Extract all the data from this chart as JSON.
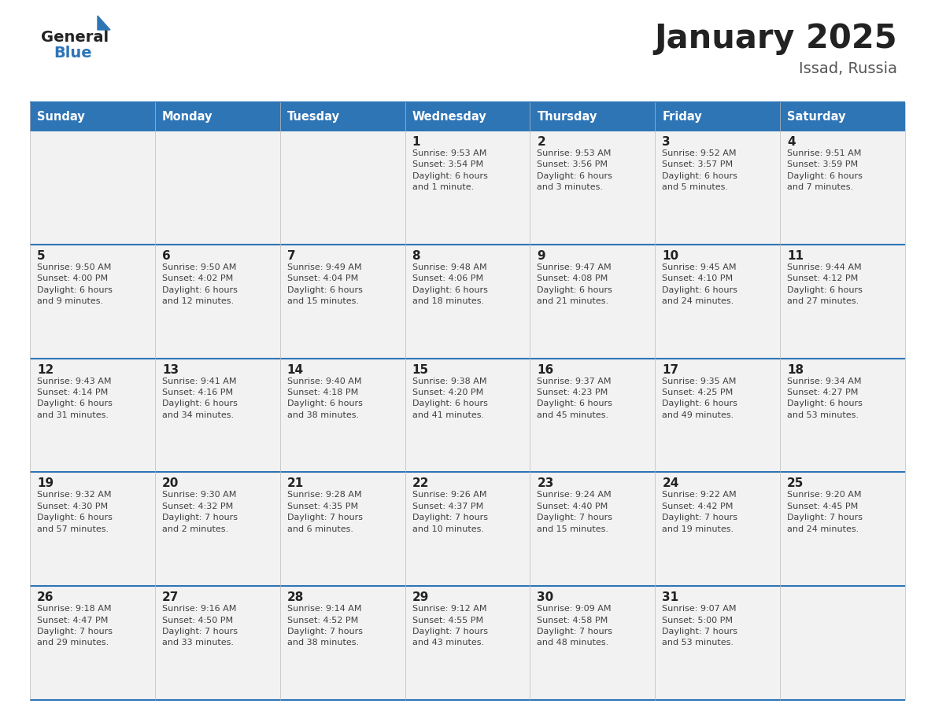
{
  "title": "January 2025",
  "subtitle": "Issad, Russia",
  "days_of_week": [
    "Sunday",
    "Monday",
    "Tuesday",
    "Wednesday",
    "Thursday",
    "Friday",
    "Saturday"
  ],
  "header_bg": "#2E75B6",
  "header_text": "#FFFFFF",
  "row_bg_light": "#F2F2F2",
  "row_bg_white": "#FFFFFF",
  "cell_text_color": "#404040",
  "day_num_color": "#222222",
  "border_color": "#2E75B6",
  "sep_line_color": "#2E75B6",
  "title_color": "#222222",
  "subtitle_color": "#555555",
  "logo_general_color": "#222222",
  "logo_blue_color": "#2E75B6",
  "calendar_data": [
    [
      {
        "day": "",
        "info": ""
      },
      {
        "day": "",
        "info": ""
      },
      {
        "day": "",
        "info": ""
      },
      {
        "day": "1",
        "info": "Sunrise: 9:53 AM\nSunset: 3:54 PM\nDaylight: 6 hours\nand 1 minute."
      },
      {
        "day": "2",
        "info": "Sunrise: 9:53 AM\nSunset: 3:56 PM\nDaylight: 6 hours\nand 3 minutes."
      },
      {
        "day": "3",
        "info": "Sunrise: 9:52 AM\nSunset: 3:57 PM\nDaylight: 6 hours\nand 5 minutes."
      },
      {
        "day": "4",
        "info": "Sunrise: 9:51 AM\nSunset: 3:59 PM\nDaylight: 6 hours\nand 7 minutes."
      }
    ],
    [
      {
        "day": "5",
        "info": "Sunrise: 9:50 AM\nSunset: 4:00 PM\nDaylight: 6 hours\nand 9 minutes."
      },
      {
        "day": "6",
        "info": "Sunrise: 9:50 AM\nSunset: 4:02 PM\nDaylight: 6 hours\nand 12 minutes."
      },
      {
        "day": "7",
        "info": "Sunrise: 9:49 AM\nSunset: 4:04 PM\nDaylight: 6 hours\nand 15 minutes."
      },
      {
        "day": "8",
        "info": "Sunrise: 9:48 AM\nSunset: 4:06 PM\nDaylight: 6 hours\nand 18 minutes."
      },
      {
        "day": "9",
        "info": "Sunrise: 9:47 AM\nSunset: 4:08 PM\nDaylight: 6 hours\nand 21 minutes."
      },
      {
        "day": "10",
        "info": "Sunrise: 9:45 AM\nSunset: 4:10 PM\nDaylight: 6 hours\nand 24 minutes."
      },
      {
        "day": "11",
        "info": "Sunrise: 9:44 AM\nSunset: 4:12 PM\nDaylight: 6 hours\nand 27 minutes."
      }
    ],
    [
      {
        "day": "12",
        "info": "Sunrise: 9:43 AM\nSunset: 4:14 PM\nDaylight: 6 hours\nand 31 minutes."
      },
      {
        "day": "13",
        "info": "Sunrise: 9:41 AM\nSunset: 4:16 PM\nDaylight: 6 hours\nand 34 minutes."
      },
      {
        "day": "14",
        "info": "Sunrise: 9:40 AM\nSunset: 4:18 PM\nDaylight: 6 hours\nand 38 minutes."
      },
      {
        "day": "15",
        "info": "Sunrise: 9:38 AM\nSunset: 4:20 PM\nDaylight: 6 hours\nand 41 minutes."
      },
      {
        "day": "16",
        "info": "Sunrise: 9:37 AM\nSunset: 4:23 PM\nDaylight: 6 hours\nand 45 minutes."
      },
      {
        "day": "17",
        "info": "Sunrise: 9:35 AM\nSunset: 4:25 PM\nDaylight: 6 hours\nand 49 minutes."
      },
      {
        "day": "18",
        "info": "Sunrise: 9:34 AM\nSunset: 4:27 PM\nDaylight: 6 hours\nand 53 minutes."
      }
    ],
    [
      {
        "day": "19",
        "info": "Sunrise: 9:32 AM\nSunset: 4:30 PM\nDaylight: 6 hours\nand 57 minutes."
      },
      {
        "day": "20",
        "info": "Sunrise: 9:30 AM\nSunset: 4:32 PM\nDaylight: 7 hours\nand 2 minutes."
      },
      {
        "day": "21",
        "info": "Sunrise: 9:28 AM\nSunset: 4:35 PM\nDaylight: 7 hours\nand 6 minutes."
      },
      {
        "day": "22",
        "info": "Sunrise: 9:26 AM\nSunset: 4:37 PM\nDaylight: 7 hours\nand 10 minutes."
      },
      {
        "day": "23",
        "info": "Sunrise: 9:24 AM\nSunset: 4:40 PM\nDaylight: 7 hours\nand 15 minutes."
      },
      {
        "day": "24",
        "info": "Sunrise: 9:22 AM\nSunset: 4:42 PM\nDaylight: 7 hours\nand 19 minutes."
      },
      {
        "day": "25",
        "info": "Sunrise: 9:20 AM\nSunset: 4:45 PM\nDaylight: 7 hours\nand 24 minutes."
      }
    ],
    [
      {
        "day": "26",
        "info": "Sunrise: 9:18 AM\nSunset: 4:47 PM\nDaylight: 7 hours\nand 29 minutes."
      },
      {
        "day": "27",
        "info": "Sunrise: 9:16 AM\nSunset: 4:50 PM\nDaylight: 7 hours\nand 33 minutes."
      },
      {
        "day": "28",
        "info": "Sunrise: 9:14 AM\nSunset: 4:52 PM\nDaylight: 7 hours\nand 38 minutes."
      },
      {
        "day": "29",
        "info": "Sunrise: 9:12 AM\nSunset: 4:55 PM\nDaylight: 7 hours\nand 43 minutes."
      },
      {
        "day": "30",
        "info": "Sunrise: 9:09 AM\nSunset: 4:58 PM\nDaylight: 7 hours\nand 48 minutes."
      },
      {
        "day": "31",
        "info": "Sunrise: 9:07 AM\nSunset: 5:00 PM\nDaylight: 7 hours\nand 53 minutes."
      },
      {
        "day": "",
        "info": ""
      }
    ]
  ],
  "fig_width": 11.88,
  "fig_height": 9.18,
  "dpi": 100
}
